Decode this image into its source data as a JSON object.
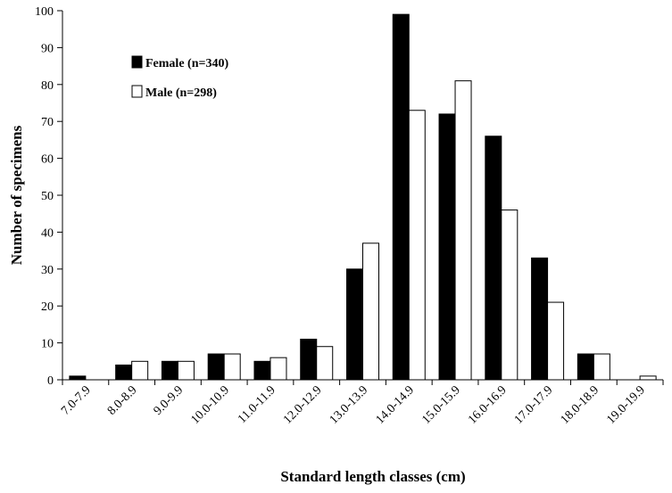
{
  "chart_data": {
    "type": "bar",
    "title": "",
    "xlabel": "Standard length classes (cm)",
    "ylabel": "Number of specimens",
    "ylim": [
      0,
      100
    ],
    "yticks": [
      0,
      10,
      20,
      30,
      40,
      50,
      60,
      70,
      80,
      90,
      100
    ],
    "grid": false,
    "legend_position": "top-left",
    "categories": [
      "7.0-7.9",
      "8.0-8.9",
      "9.0-9.9",
      "10.0-10.9",
      "11.0-11.9",
      "12.0-12.9",
      "13.0-13.9",
      "14.0-14.9",
      "15.0-15.9",
      "16.0-16.9",
      "17.0-17.9",
      "18.0-18.9",
      "19.0-19.9"
    ],
    "series": [
      {
        "name": "Female (n=340)",
        "color": "#000000",
        "values": [
          1,
          4,
          5,
          7,
          5,
          11,
          30,
          99,
          72,
          66,
          33,
          7,
          0
        ]
      },
      {
        "name": "Male (n=298)",
        "color": "#ffffff",
        "values": [
          0,
          5,
          5,
          7,
          6,
          9,
          37,
          73,
          81,
          46,
          21,
          7,
          1
        ]
      }
    ]
  }
}
